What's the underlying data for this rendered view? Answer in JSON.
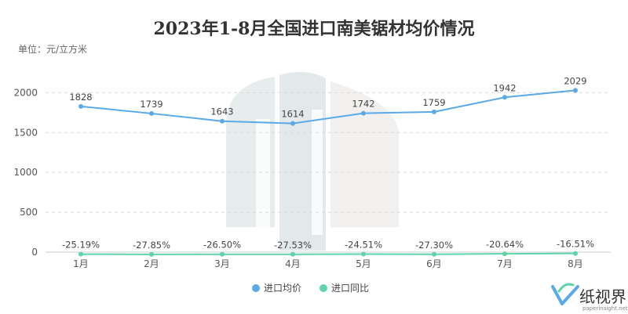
{
  "chart_data": {
    "type": "line",
    "title": "2023年1-8月全国进口南美锯材均价情况",
    "unit_label": "单位：元/立方米",
    "categories": [
      "1月",
      "2月",
      "3月",
      "4月",
      "5月",
      "6月",
      "7月",
      "8月"
    ],
    "y_ticks": [
      "0",
      "500",
      "1000",
      "1500",
      "2000"
    ],
    "ylim": [
      0,
      2200
    ],
    "grid": true,
    "legend_position": "bottom-center",
    "series": [
      {
        "name": "进口均价",
        "color": "#5aa9e8",
        "values": [
          1828,
          1739,
          1643,
          1614,
          1742,
          1759,
          1942,
          2029
        ],
        "labels": [
          "1828",
          "1739",
          "1643",
          "1614",
          "1742",
          "1759",
          "1942",
          "2029"
        ]
      },
      {
        "name": "进口同比",
        "color": "#5ed4a8",
        "values": [
          -25.19,
          -27.85,
          -26.5,
          -27.53,
          -24.51,
          -27.3,
          -20.64,
          -16.51
        ],
        "labels": [
          "-25.19%",
          "-27.85%",
          "-26.50%",
          "-27.53%",
          "-24.51%",
          "-27.30%",
          "-20.64%",
          "-16.51%"
        ]
      }
    ]
  },
  "watermark": {
    "brand_text": "纸视界",
    "brand_url": "paperinsight.net"
  }
}
